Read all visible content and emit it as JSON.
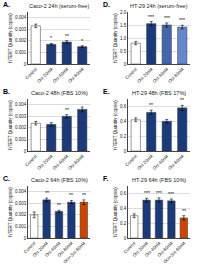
{
  "chart_data": [
    {
      "type": "bar",
      "title": "Caco-2 24h (serum-free)",
      "ylabel": "hTERT Quantity (copies)",
      "annotations": [
        {
          "text": "A."
        },
        {
          "text": "*",
          "category": "Oct 20nM"
        },
        {
          "text": "**",
          "category": "Oct 40nM"
        },
        {
          "text": "*",
          "category": "Oct 60nM"
        }
      ],
      "categories": [
        "Control",
        "Oct 20nM",
        "Oct 40nM",
        "Oct 60nM"
      ],
      "values": [
        0.0033,
        0.0017,
        0.0019,
        0.0015
      ],
      "errors": [
        0.00015,
        8e-05,
        0.00012,
        8e-05
      ],
      "colors": [
        "#ffffff",
        "#1a3a7a",
        "#1a3a7a",
        "#1a3a7a"
      ],
      "ylim": [
        0,
        0.0045
      ],
      "yticks": [
        0,
        0.001,
        0.002,
        0.003,
        0.004
      ],
      "grid": true
    },
    {
      "type": "bar",
      "title": "HT-29 24h (serum-free)",
      "ylabel": "hTERT Quantity (copies)",
      "annotations": [
        {
          "text": "D."
        },
        {
          "text": "***",
          "category": "Oct 20nM"
        },
        {
          "text": "***",
          "category": "Oct 40nM"
        },
        {
          "text": "***",
          "category": "Oct 60nM"
        }
      ],
      "categories": [
        "Control",
        "Oct 20nM",
        "Oct 40nM",
        "Oct 60nM"
      ],
      "values": [
        0.8,
        1.55,
        1.5,
        1.42
      ],
      "errors": [
        0.06,
        0.08,
        0.08,
        0.07
      ],
      "colors": [
        "#ffffff",
        "#1a3a7a",
        "#4466aa",
        "#6688cc"
      ],
      "ylim": [
        0,
        2.0
      ],
      "yticks": [
        0,
        0.5,
        {
          "value": 1.0,
          "label": "1.0"
        },
        1.5,
        {
          "value": 2.0,
          "label": "2.0"
        }
      ],
      "grid": true
    },
    {
      "type": "bar",
      "title": "Caco-2 48h (FBS 10%)",
      "ylabel": "hTERT Quantity (copies)",
      "annotations": [
        {
          "text": "B."
        },
        {
          "text": "**",
          "category": "Oct 40nM"
        }
      ],
      "categories": [
        "Control",
        "Oct 20nM",
        "Oct 40nM",
        "Oct 60nM"
      ],
      "values": [
        0.0024,
        0.0023,
        0.003,
        0.0036
      ],
      "errors": [
        0.00015,
        0.00015,
        0.00015,
        0.0002
      ],
      "colors": [
        "#ffffff",
        "#1a3a7a",
        "#1a3a7a",
        "#1a3a7a"
      ],
      "ylim": [
        0,
        0.0045
      ],
      "yticks": [
        0,
        0.001,
        0.002,
        0.003,
        0.004
      ],
      "grid": true
    },
    {
      "type": "bar",
      "title": "HT-29 48h (FBS 17%)",
      "ylabel": "hTERT Quantity (copies)",
      "annotations": [
        {
          "text": "E."
        },
        {
          "text": "**",
          "category": "Oct 20nM"
        },
        {
          "text": "**",
          "category": "Oct 60nM"
        }
      ],
      "categories": [
        "Control",
        "Oct 20nM",
        "Oct 40nM",
        "Oct 60nM"
      ],
      "values": [
        0.42,
        0.52,
        0.4,
        0.58
      ],
      "errors": [
        0.025,
        0.03,
        0.025,
        0.035
      ],
      "colors": [
        "#ffffff",
        "#1a3a7a",
        "#1a3a7a",
        "#1a3a7a"
      ],
      "ylim": [
        0,
        0.7
      ],
      "yticks": [
        0,
        0.2,
        0.4,
        0.6
      ],
      "grid": true
    },
    {
      "type": "bar",
      "title": "Caco-2 64h (FBS 10%)",
      "ylabel": "hTERT Quantity (copies)",
      "annotations": [
        {
          "text": "C."
        },
        {
          "text": "**",
          "category": "Oct 20nM"
        },
        {
          "text": "**",
          "category": "Oct 40nM"
        },
        {
          "text": "**",
          "category": "Oct 60nM"
        },
        {
          "text": "**",
          "category": "Oct+Sst 60nM"
        }
      ],
      "categories": [
        "Control",
        "Oct 20nM",
        "Oct 40nM",
        "Oct 60nM",
        "Oct+Sst 60nM"
      ],
      "values": [
        0.002,
        0.0033,
        0.0023,
        0.0031,
        0.0031
      ],
      "errors": [
        0.00025,
        0.00015,
        0.0001,
        0.00015,
        0.0002
      ],
      "colors": [
        "#ffffff",
        "#1a3a7a",
        "#1a3a7a",
        "#1a3a7a",
        "#cc4400"
      ],
      "ylim": [
        0,
        0.0045
      ],
      "yticks": [
        0,
        0.001,
        0.002,
        0.003,
        0.004
      ],
      "grid": true
    },
    {
      "type": "bar",
      "title": "HT-29 64h (FBS 10%)",
      "ylabel": "hTERT Quantity (copies)",
      "annotations": [
        {
          "text": "F."
        },
        {
          "text": "***",
          "category": "Oct 20nM"
        },
        {
          "text": "***",
          "category": "Oct 40nM"
        },
        {
          "text": "***",
          "category": "Oct 60nM"
        },
        {
          "text": "**",
          "category": "Oct+Sst 60nM"
        }
      ],
      "categories": [
        "Control",
        "Oct 20nM",
        "Oct 40nM",
        "Oct 60nM",
        "Oct+Sst 60nM"
      ],
      "values": [
        0.3,
        0.51,
        0.51,
        0.5,
        0.27
      ],
      "errors": [
        0.025,
        0.025,
        0.03,
        0.025,
        0.03
      ],
      "colors": [
        "#ffffff",
        "#1a3a7a",
        "#1a3a7a",
        "#1a3a7a",
        "#cc4400"
      ],
      "ylim": [
        0,
        0.7
      ],
      "yticks": [
        0,
        0.2,
        0.4,
        0.6
      ],
      "grid": true
    }
  ]
}
